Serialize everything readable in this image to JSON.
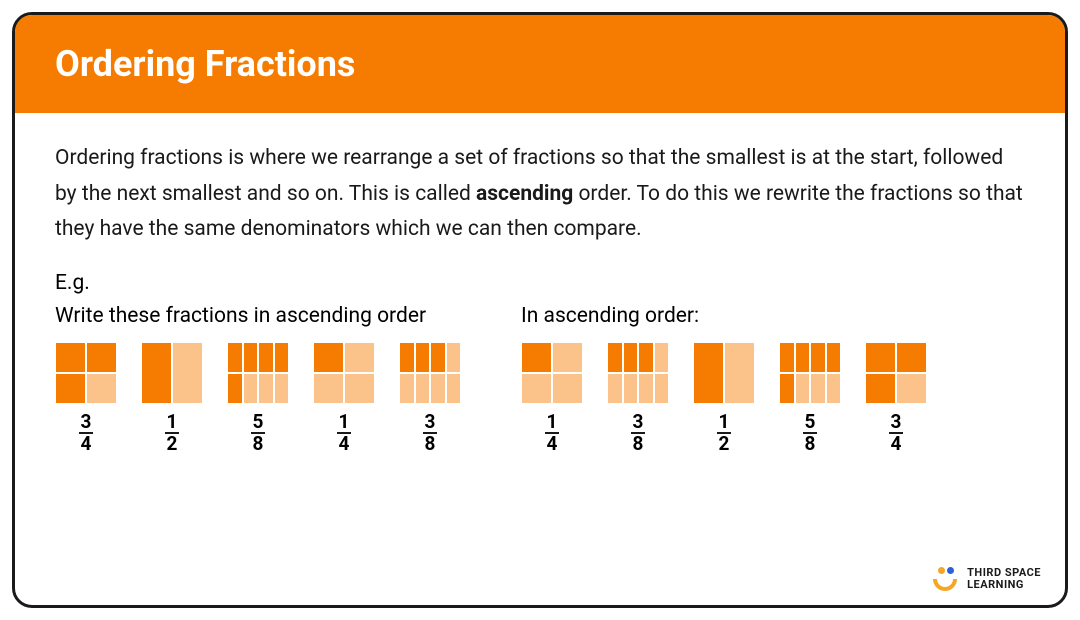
{
  "header": {
    "title": "Ordering Fractions"
  },
  "description": {
    "pre": "Ordering fractions is where we rearrange a set of fractions so that the smallest is at the start, followed by the next smallest and so on. This is called ",
    "bold": "ascending",
    "post": " order. To do this we rewrite the fractions so that they have the same denominators which we can then compare."
  },
  "example": {
    "eg_label": "E.g.",
    "left_label": "Write these fractions in ascending order",
    "right_label": "In ascending order:",
    "colors": {
      "filled": "#f57c00",
      "empty": "#fbc38a",
      "border": "#ffffff"
    },
    "left_fractions": [
      {
        "num": 3,
        "den": 4,
        "layout": "quarters",
        "pattern": [
          1,
          1,
          1,
          0
        ]
      },
      {
        "num": 1,
        "den": 2,
        "layout": "halves",
        "pattern": [
          1,
          0
        ]
      },
      {
        "num": 5,
        "den": 8,
        "layout": "eighths",
        "pattern": [
          1,
          1,
          1,
          1,
          1,
          0,
          0,
          0
        ]
      },
      {
        "num": 1,
        "den": 4,
        "layout": "quarters",
        "pattern": [
          1,
          0,
          0,
          0
        ]
      },
      {
        "num": 3,
        "den": 8,
        "layout": "eighths",
        "pattern": [
          1,
          1,
          1,
          0,
          0,
          0,
          0,
          0
        ]
      }
    ],
    "right_fractions": [
      {
        "num": 1,
        "den": 4,
        "layout": "quarters",
        "pattern": [
          1,
          0,
          0,
          0
        ]
      },
      {
        "num": 3,
        "den": 8,
        "layout": "eighths",
        "pattern": [
          1,
          1,
          1,
          0,
          0,
          0,
          0,
          0
        ]
      },
      {
        "num": 1,
        "den": 2,
        "layout": "halves",
        "pattern": [
          1,
          0
        ]
      },
      {
        "num": 5,
        "den": 8,
        "layout": "eighths",
        "pattern": [
          1,
          1,
          1,
          1,
          1,
          0,
          0,
          0
        ]
      },
      {
        "num": 3,
        "den": 4,
        "layout": "quarters",
        "pattern": [
          1,
          1,
          1,
          0
        ]
      }
    ]
  },
  "branding": {
    "line1": "THIRD SPACE",
    "line2": "LEARNING"
  }
}
